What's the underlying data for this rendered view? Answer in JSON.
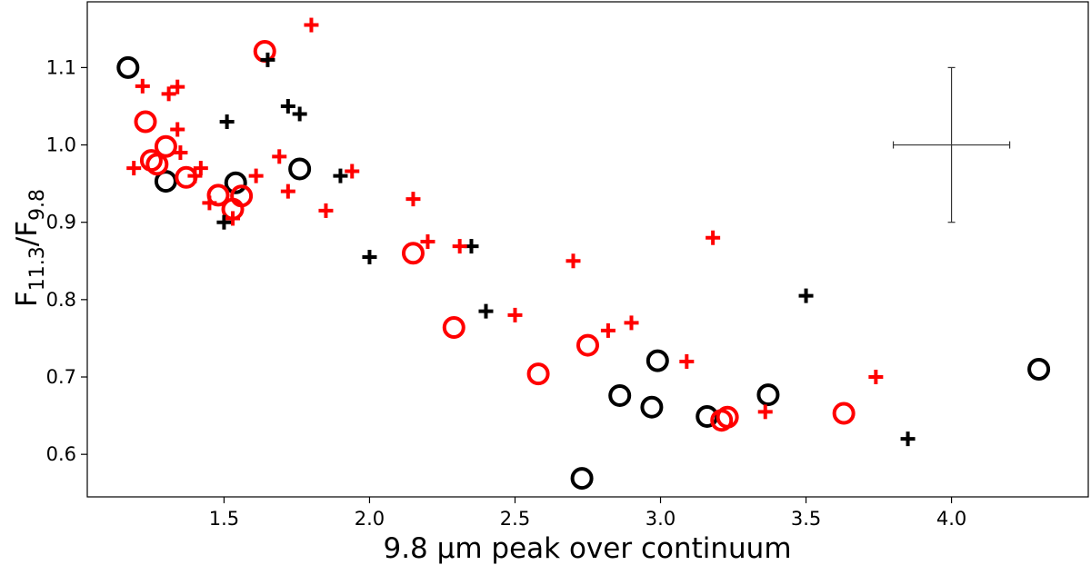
{
  "chart_data": {
    "type": "scatter",
    "title": "",
    "xlabel": "9.8 μm peak over continuum",
    "ylabel": {
      "base": "F",
      "num_sub": "11.3",
      "sep": "/F",
      "den_sub": "9.8"
    },
    "xlim": [
      1.03,
      4.47
    ],
    "ylim": [
      0.545,
      1.185
    ],
    "x_ticks": [
      1.5,
      2.0,
      2.5,
      3.0,
      3.5,
      4.0
    ],
    "x_tick_labels": [
      "1.5",
      "2.0",
      "2.5",
      "3.0",
      "3.5",
      "4.0"
    ],
    "y_ticks": [
      0.6,
      0.7,
      0.8,
      0.9,
      1.0,
      1.1
    ],
    "y_tick_labels": [
      "0.6",
      "0.7",
      "0.8",
      "0.9",
      "1.0",
      "1.1"
    ],
    "grid": false,
    "legend": "none",
    "colors": {
      "red": "#ff0000",
      "black": "#000000",
      "errorbar": "#333333"
    },
    "series": [
      {
        "marker": "circle",
        "color": "#000000",
        "points": [
          [
            1.17,
            1.1
          ],
          [
            1.3,
            0.953
          ],
          [
            1.54,
            0.951
          ],
          [
            1.76,
            0.969
          ],
          [
            2.73,
            0.569
          ],
          [
            2.86,
            0.676
          ],
          [
            2.97,
            0.661
          ],
          [
            2.99,
            0.721
          ],
          [
            3.16,
            0.649
          ],
          [
            3.37,
            0.677
          ],
          [
            4.3,
            0.71
          ]
        ]
      },
      {
        "marker": "circle",
        "color": "#ff0000",
        "points": [
          [
            1.23,
            1.03
          ],
          [
            1.25,
            0.98
          ],
          [
            1.27,
            0.975
          ],
          [
            1.3,
            0.998
          ],
          [
            1.37,
            0.958
          ],
          [
            1.48,
            0.935
          ],
          [
            1.53,
            0.917
          ],
          [
            1.56,
            0.934
          ],
          [
            1.64,
            1.121
          ],
          [
            2.15,
            0.86
          ],
          [
            2.29,
            0.764
          ],
          [
            2.58,
            0.704
          ],
          [
            2.75,
            0.741
          ],
          [
            3.21,
            0.644
          ],
          [
            3.23,
            0.648
          ],
          [
            3.63,
            0.653
          ]
        ]
      },
      {
        "marker": "plus",
        "color": "#000000",
        "points": [
          [
            1.5,
            0.9
          ],
          [
            1.51,
            1.03
          ],
          [
            1.65,
            1.11
          ],
          [
            1.72,
            1.05
          ],
          [
            1.76,
            1.04
          ],
          [
            1.9,
            0.96
          ],
          [
            2.0,
            0.855
          ],
          [
            2.35,
            0.869
          ],
          [
            2.4,
            0.785
          ],
          [
            3.5,
            0.805
          ],
          [
            3.85,
            0.62
          ]
        ]
      },
      {
        "marker": "plus",
        "color": "#ff0000",
        "points": [
          [
            1.19,
            0.97
          ],
          [
            1.22,
            1.076
          ],
          [
            1.31,
            1.066
          ],
          [
            1.34,
            1.075
          ],
          [
            1.34,
            1.02
          ],
          [
            1.35,
            0.99
          ],
          [
            1.4,
            0.96
          ],
          [
            1.42,
            0.97
          ],
          [
            1.45,
            0.925
          ],
          [
            1.53,
            0.905
          ],
          [
            1.61,
            0.96
          ],
          [
            1.69,
            0.985
          ],
          [
            1.72,
            0.94
          ],
          [
            1.8,
            1.155
          ],
          [
            1.85,
            0.915
          ],
          [
            1.94,
            0.966
          ],
          [
            2.15,
            0.93
          ],
          [
            2.2,
            0.875
          ],
          [
            2.31,
            0.869
          ],
          [
            2.5,
            0.78
          ],
          [
            2.7,
            0.85
          ],
          [
            2.82,
            0.76
          ],
          [
            2.9,
            0.77
          ],
          [
            3.09,
            0.72
          ],
          [
            3.18,
            0.88
          ],
          [
            3.36,
            0.655
          ],
          [
            3.74,
            0.7
          ]
        ]
      }
    ],
    "error_bar": {
      "x": 4.0,
      "y": 1.0,
      "xerr": 0.2,
      "yerr": 0.1
    }
  }
}
